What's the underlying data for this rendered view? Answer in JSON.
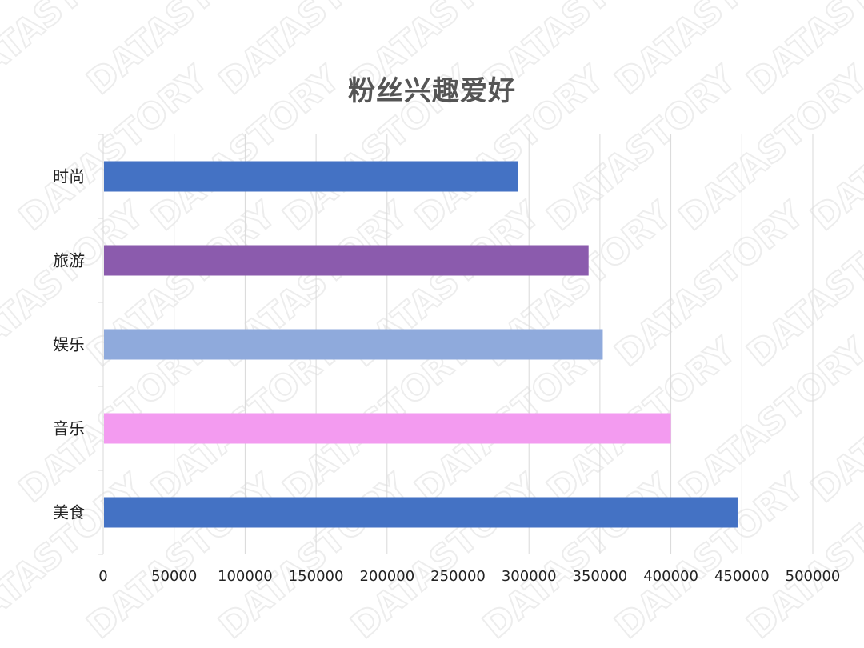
{
  "watermark": {
    "text": "DATASTORY"
  },
  "chart_data": {
    "type": "bar",
    "orientation": "horizontal",
    "title": "粉丝兴趣爱好",
    "categories": [
      "时尚",
      "旅游",
      "娱乐",
      "音乐",
      "美食"
    ],
    "values": [
      292000,
      342000,
      352000,
      400000,
      447000
    ],
    "colors": [
      "#4472C4",
      "#8B5BAD",
      "#8FAADC",
      "#F39BF0",
      "#4472C4"
    ],
    "xlim": [
      0,
      500000
    ],
    "x_ticks": [
      "0",
      "50000",
      "100000",
      "150000",
      "200000",
      "250000",
      "300000",
      "350000",
      "400000",
      "450000",
      "500000"
    ],
    "grid": true,
    "gridline_color": "#D9D9D9",
    "legend": "none"
  }
}
